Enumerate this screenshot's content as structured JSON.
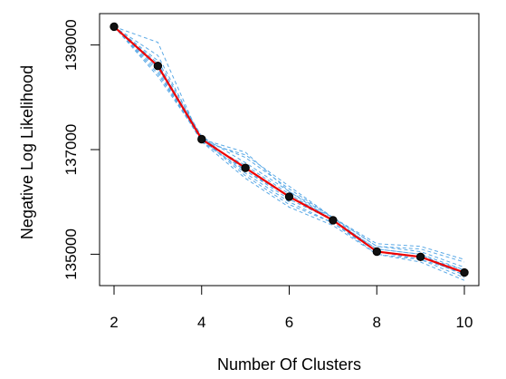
{
  "chart_data": {
    "type": "line",
    "title": "",
    "xlabel": "Number Of Clusters",
    "ylabel": "Negative Log Likelihood",
    "xlim": [
      2,
      10
    ],
    "ylim": [
      134400,
      139600
    ],
    "xticks": [
      2,
      4,
      6,
      8,
      10
    ],
    "yticks": [
      135000,
      137000,
      139000
    ],
    "grid": false,
    "legend": "none",
    "x": [
      2,
      3,
      4,
      5,
      6,
      7,
      8,
      9,
      10
    ],
    "series": [
      {
        "role": "mean",
        "color": "#ee0000",
        "marker": "filled-circle",
        "values": [
          139350,
          138600,
          137200,
          136650,
          136100,
          135650,
          135050,
          134950,
          134650
        ]
      }
    ],
    "replicates": {
      "color": "#5aa9e6",
      "style": "dashed",
      "runs": [
        [
          139350,
          138500,
          137150,
          136700,
          136150,
          135650,
          135050,
          134950,
          134700
        ],
        [
          139350,
          138700,
          137250,
          136600,
          136050,
          135650,
          135100,
          135000,
          134600
        ],
        [
          139350,
          138450,
          137200,
          136550,
          136000,
          135600,
          135000,
          134900,
          134550
        ],
        [
          139350,
          138800,
          137200,
          136850,
          136250,
          135700,
          135150,
          135050,
          134750
        ],
        [
          139350,
          139050,
          137150,
          136900,
          136300,
          135700,
          135150,
          135100,
          134850
        ],
        [
          139350,
          138550,
          137150,
          136450,
          135900,
          135550,
          135000,
          134850,
          134500
        ],
        [
          139350,
          138600,
          137250,
          136750,
          136200,
          135700,
          135200,
          135150,
          134900
        ],
        [
          139350,
          138400,
          137200,
          136500,
          135950,
          135600,
          135050,
          134900,
          134650
        ],
        [
          139350,
          138650,
          137200,
          136950,
          136200,
          135650,
          135100,
          135000,
          134700
        ],
        [
          139350,
          138600,
          137150,
          136600,
          136100,
          135700,
          135050,
          134950,
          134600
        ]
      ]
    }
  }
}
